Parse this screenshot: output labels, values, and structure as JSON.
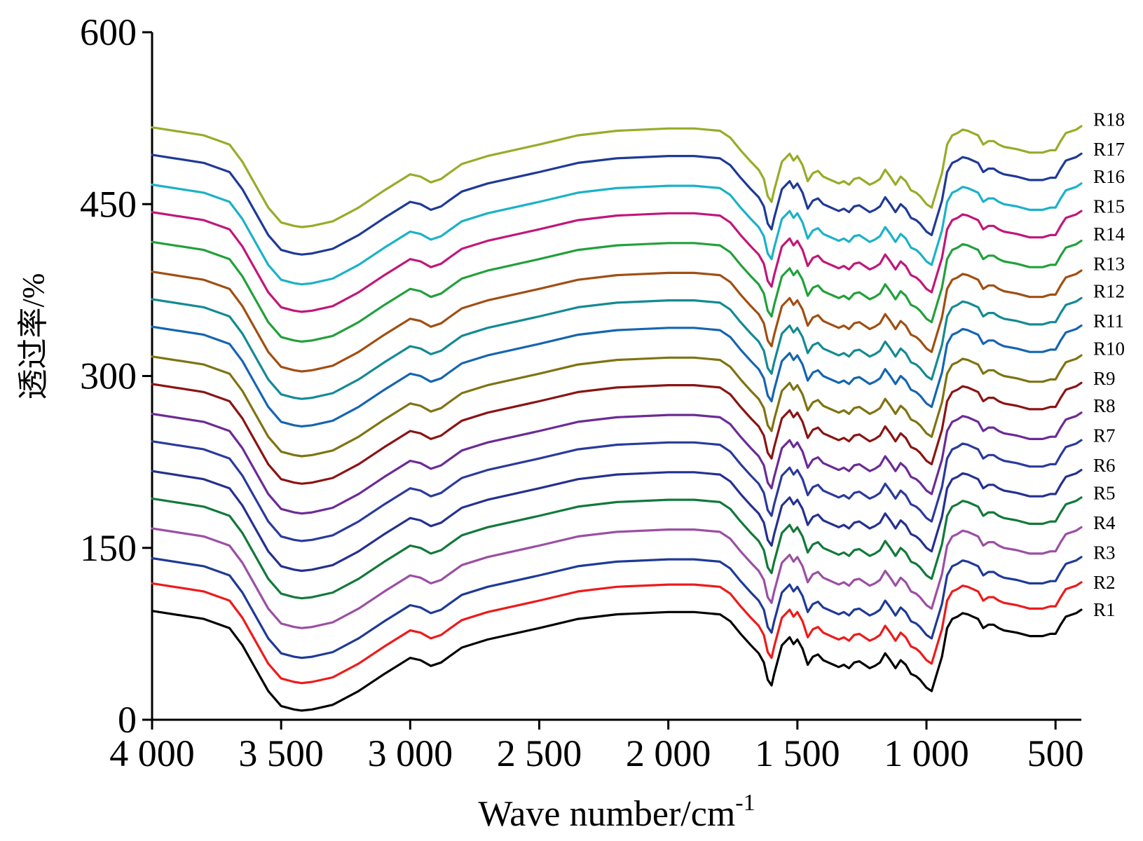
{
  "chart_data": {
    "type": "line",
    "xlabel": "Wave number/cm",
    "xlabel_sup": "-1",
    "ylabel": "透过率/%",
    "xlim": [
      4000,
      400
    ],
    "ylim": [
      0,
      600
    ],
    "x_ticks": [
      4000,
      3500,
      3000,
      2500,
      2000,
      1500,
      1000,
      500
    ],
    "x_tick_labels": [
      "4 000",
      "3 500",
      "3 000",
      "2 500",
      "2 000",
      "1 500",
      "1 000",
      "500"
    ],
    "y_ticks": [
      0,
      150,
      300,
      450,
      600
    ],
    "y_tick_labels": [
      "0",
      "150",
      "300",
      "450",
      "600"
    ],
    "grid": false,
    "legend": "right-end labels",
    "profile_description": "y values are the R1 shape; each series follows R1 plus its own offset",
    "x": [
      4000,
      3800,
      3700,
      3650,
      3600,
      3550,
      3500,
      3450,
      3420,
      3380,
      3300,
      3200,
      3100,
      3000,
      2960,
      2920,
      2880,
      2850,
      2800,
      2700,
      2500,
      2350,
      2200,
      2000,
      1900,
      1800,
      1760,
      1720,
      1680,
      1650,
      1630,
      1615,
      1600,
      1590,
      1560,
      1530,
      1515,
      1500,
      1480,
      1460,
      1440,
      1420,
      1400,
      1380,
      1360,
      1340,
      1320,
      1300,
      1280,
      1260,
      1240,
      1220,
      1200,
      1180,
      1160,
      1140,
      1120,
      1100,
      1080,
      1060,
      1040,
      1025,
      1000,
      980,
      960,
      940,
      920,
      900,
      880,
      860,
      840,
      820,
      800,
      780,
      760,
      740,
      720,
      700,
      650,
      600,
      550,
      520,
      500,
      480,
      460,
      420,
      400
    ],
    "profile_y": [
      95,
      88,
      80,
      65,
      45,
      25,
      12,
      9,
      8,
      9,
      13,
      25,
      40,
      54,
      52,
      47,
      50,
      55,
      63,
      70,
      80,
      88,
      92,
      94,
      94,
      92,
      86,
      75,
      65,
      58,
      50,
      35,
      30,
      40,
      65,
      72,
      66,
      70,
      62,
      48,
      55,
      57,
      52,
      50,
      48,
      46,
      48,
      45,
      50,
      51,
      48,
      45,
      47,
      50,
      58,
      52,
      45,
      52,
      48,
      40,
      38,
      35,
      28,
      25,
      40,
      55,
      80,
      88,
      90,
      93,
      92,
      90,
      88,
      80,
      83,
      83,
      80,
      78,
      76,
      73,
      73,
      75,
      75,
      83,
      90,
      93,
      96
    ],
    "series": [
      {
        "name": "R1",
        "offset": 0,
        "color": "#000000"
      },
      {
        "name": "R2",
        "offset": 24,
        "color": "#ee1a1a"
      },
      {
        "name": "R3",
        "offset": 46,
        "color": "#1f3a96"
      },
      {
        "name": "R4",
        "offset": 72,
        "color": "#9b4fa3"
      },
      {
        "name": "R5",
        "offset": 98,
        "color": "#12793a"
      },
      {
        "name": "R6",
        "offset": 122,
        "color": "#25308f"
      },
      {
        "name": "R7",
        "offset": 148,
        "color": "#2a3a9c"
      },
      {
        "name": "R8",
        "offset": 172,
        "color": "#6b2b96"
      },
      {
        "name": "R9",
        "offset": 198,
        "color": "#8a1414"
      },
      {
        "name": "R10",
        "offset": 222,
        "color": "#7f7312"
      },
      {
        "name": "R11",
        "offset": 248,
        "color": "#1565b0"
      },
      {
        "name": "R12",
        "offset": 272,
        "color": "#148a93"
      },
      {
        "name": "R13",
        "offset": 296,
        "color": "#a04f12"
      },
      {
        "name": "R14",
        "offset": 322,
        "color": "#22a03b"
      },
      {
        "name": "R15",
        "offset": 348,
        "color": "#c0177a"
      },
      {
        "name": "R16",
        "offset": 372,
        "color": "#1ab2c8"
      },
      {
        "name": "R17",
        "offset": 398,
        "color": "#1f3a96"
      },
      {
        "name": "R18",
        "offset": 422,
        "color": "#97ac28"
      }
    ],
    "label_y": [
      96,
      120,
      146,
      172,
      198,
      222,
      248,
      274,
      298,
      324,
      348,
      374,
      398,
      424,
      448,
      474,
      498,
      524
    ]
  }
}
